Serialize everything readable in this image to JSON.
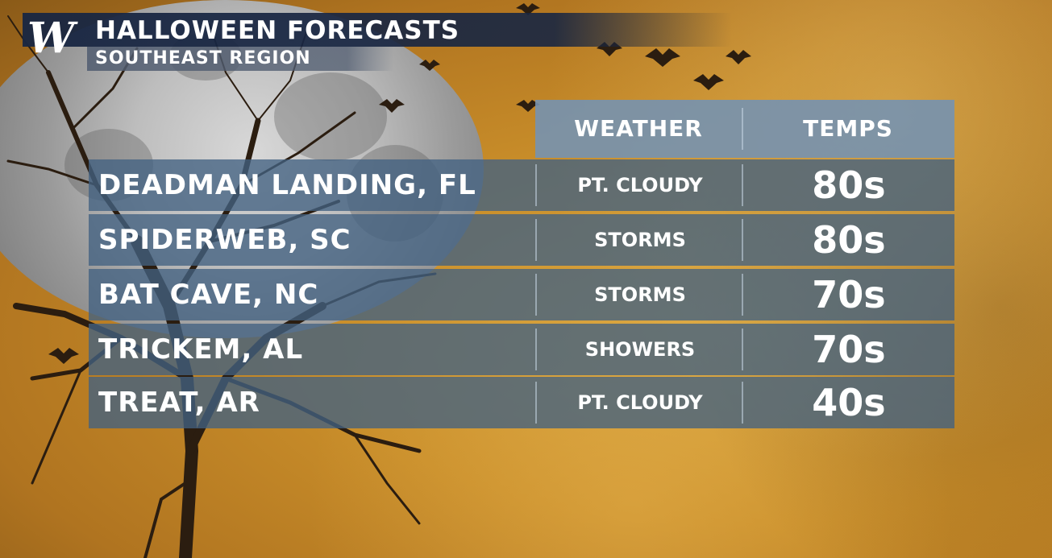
{
  "header": {
    "logo_text": "W",
    "title": "HALLOWEEN FORECASTS",
    "subtitle": "SOUTHEAST REGION"
  },
  "table": {
    "columns": [
      "WEATHER",
      "TEMPS"
    ],
    "rows": [
      {
        "city": "DEADMAN LANDING, FL",
        "weather": "PT. CLOUDY",
        "temps": "80s"
      },
      {
        "city": "SPIDERWEB, SC",
        "weather": "STORMS",
        "temps": "80s"
      },
      {
        "city": "BAT CAVE, NC",
        "weather": "STORMS",
        "temps": "70s"
      },
      {
        "city": "TRICKEM, AL",
        "weather": "SHOWERS",
        "temps": "70s"
      },
      {
        "city": "TREAT, AR",
        "weather": "PT. CLOUDY",
        "temps": "40s"
      }
    ]
  },
  "colors": {
    "header_bar": "#182642",
    "table_head": "#7692b0",
    "table_row": "#426282",
    "background": "#c98e2a"
  }
}
